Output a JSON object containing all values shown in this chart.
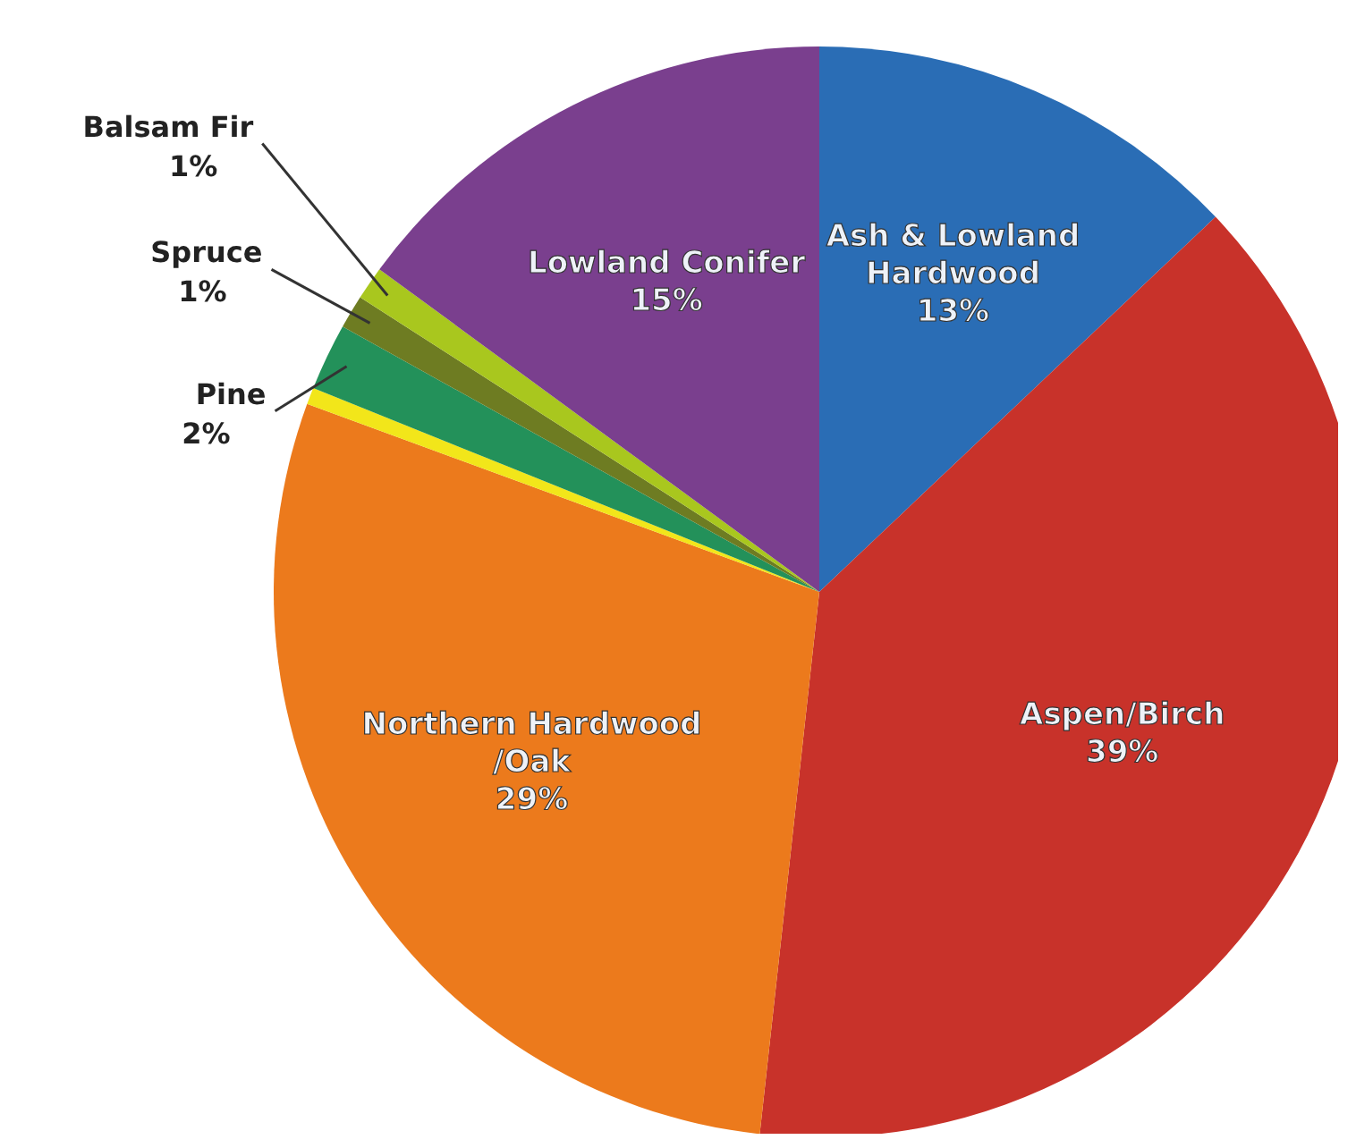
{
  "chart_data": {
    "type": "pie",
    "categories": [
      "Ash & Lowland Hardwood",
      "Aspen/Birch",
      "Northern Hardwood /Oak",
      null,
      "Pine",
      "Spruce",
      "Balsam Fir",
      "Lowland Conifer"
    ],
    "values": [
      13,
      39,
      29,
      0.5,
      2,
      1,
      1,
      15
    ],
    "value_labels": [
      "13%",
      "39%",
      "29%",
      null,
      "2%",
      "1%",
      "1%",
      "15%"
    ],
    "colors": [
      "#2a6db5",
      "#c8322a",
      "#ec7a1c",
      "#f2e61a",
      "#23915a",
      "#6e7c22",
      "#a9c71e",
      "#7a3f8e"
    ],
    "legend": false
  }
}
